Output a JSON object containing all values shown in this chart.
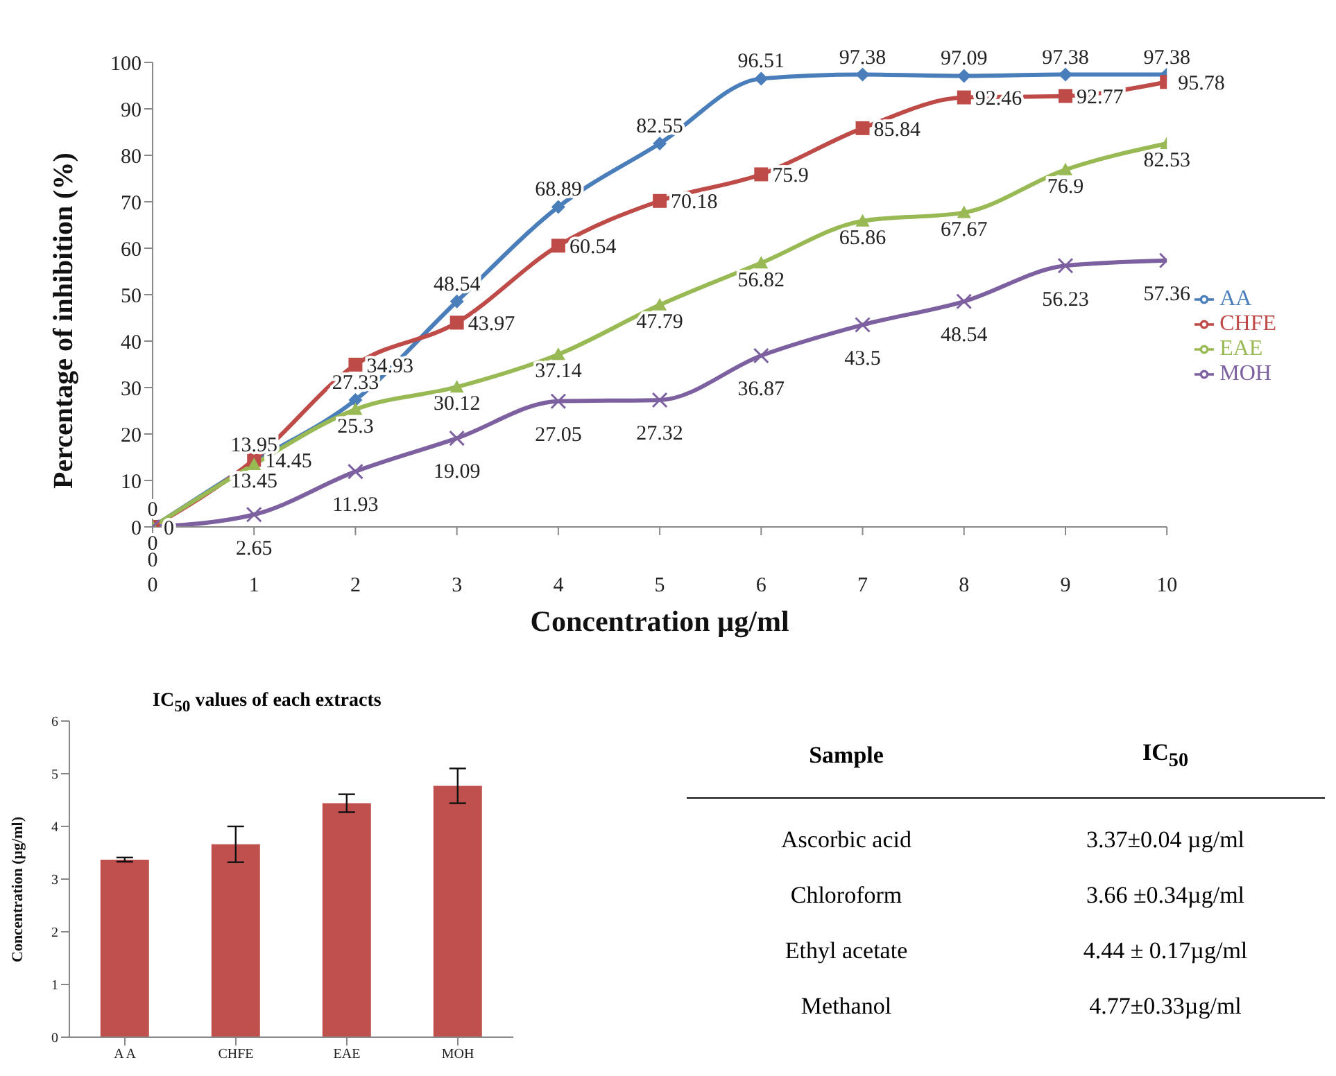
{
  "chart_data": [
    {
      "type": "line",
      "xlabel": "Concentration µg/ml",
      "ylabel": "Percentage of inhibition (%)",
      "x": [
        0,
        1,
        2,
        3,
        4,
        5,
        6,
        7,
        8,
        9,
        10
      ],
      "xlim": [
        0,
        10
      ],
      "xticks": [
        0,
        1,
        2,
        3,
        4,
        5,
        6,
        7,
        8,
        9,
        10
      ],
      "ylim": [
        0,
        100
      ],
      "yticks": [
        0,
        10,
        20,
        30,
        40,
        50,
        60,
        70,
        80,
        90,
        100
      ],
      "grid": false,
      "legend": "right",
      "data_labels": true,
      "series": [
        {
          "name": "AA",
          "color": "#4a7ebb",
          "marker": "diamond",
          "values": [
            0,
            13.95,
            27.33,
            48.54,
            68.89,
            82.55,
            96.51,
            97.38,
            97.09,
            97.38,
            97.38
          ]
        },
        {
          "name": "CHFE",
          "color": "#be4b48",
          "marker": "square",
          "values": [
            0,
            14.45,
            34.93,
            43.97,
            60.54,
            70.18,
            75.9,
            85.84,
            92.46,
            92.77,
            95.78
          ]
        },
        {
          "name": "EAE",
          "color": "#98b954",
          "marker": "triangle",
          "values": [
            0,
            13.45,
            25.3,
            30.12,
            37.14,
            47.79,
            56.82,
            65.86,
            67.67,
            76.9,
            82.53
          ]
        },
        {
          "name": "MOH",
          "color": "#7d60a0",
          "marker": "cross",
          "values": [
            0,
            2.65,
            11.93,
            19.09,
            27.05,
            27.32,
            36.87,
            43.5,
            48.54,
            56.23,
            57.36
          ]
        }
      ]
    },
    {
      "type": "bar",
      "title": "IC$_{50}$ values of each extracts",
      "ylabel": "Concentration (µg/ml)",
      "categories": [
        "A A",
        "CHFE",
        "EAE",
        "MOH"
      ],
      "values": [
        3.37,
        3.66,
        4.44,
        4.77
      ],
      "errors": [
        0.04,
        0.34,
        0.17,
        0.33
      ],
      "color": "#c0504d",
      "ylim": [
        0,
        6
      ],
      "yticks": [
        0,
        1,
        2,
        3,
        4,
        5,
        6
      ],
      "grid": false,
      "legend": false
    },
    {
      "type": "other",
      "annotations": [
        "Sample",
        "IC$_{50}$",
        "Ascorbic acid",
        "3.37±0.04 µg/ml",
        "Chloroform",
        "3.66 ±0.34µg/ml",
        "Ethyl acetate",
        "4.44 ± 0.17µg/ml",
        "Methanol",
        "4.77±0.33µg/ml"
      ]
    }
  ]
}
